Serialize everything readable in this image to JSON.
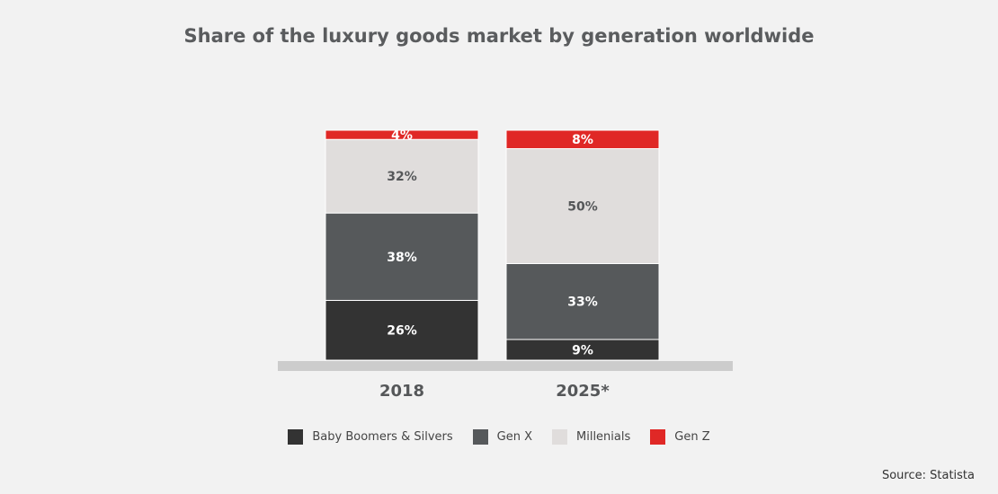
{
  "chart_data": {
    "type": "bar",
    "stacked": true,
    "title": "Share of the luxury goods market by generation worldwide",
    "categories": [
      "2018",
      "2025*"
    ],
    "series": [
      {
        "name": "Baby Boomers & Silvers",
        "values": [
          26,
          9
        ],
        "labels": [
          "26%",
          "9%"
        ],
        "color": "#333333",
        "label_color": "#ffffff"
      },
      {
        "name": "Gen X",
        "values": [
          38,
          33
        ],
        "labels": [
          "38%",
          "33%"
        ],
        "color": "#56595b",
        "label_color": "#ffffff"
      },
      {
        "name": "Millenials",
        "values": [
          32,
          50
        ],
        "labels": [
          "32%",
          "50%"
        ],
        "color": "#e0dddc",
        "label_color": "#555759"
      },
      {
        "name": "Gen Z",
        "values": [
          4,
          8
        ],
        "labels": [
          "4%",
          "8%"
        ],
        "color": "#e02826",
        "label_color": "#ffffff"
      }
    ],
    "legend_position": "bottom",
    "grid": false,
    "axis_color": "#cccccc",
    "ylim": [
      0,
      100
    ]
  },
  "source": "Source: Statista"
}
